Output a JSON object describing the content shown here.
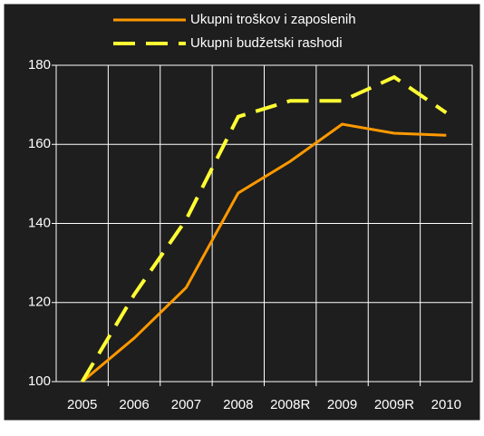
{
  "chart_data": {
    "type": "line",
    "categories": [
      "2005",
      "2006",
      "2007",
      "2008",
      "2008R",
      "2009",
      "2009R",
      "2010"
    ],
    "series": [
      {
        "name": "Ukupni troškov i zaposlenih",
        "color": "#ff9900",
        "dash": false,
        "values": [
          100,
          111,
          123.8,
          147.7,
          155.7,
          165.1,
          162.8,
          162.3
        ]
      },
      {
        "name": "Ukupni budžetski rashodi",
        "color": "#ffff33",
        "dash": true,
        "values": [
          100,
          122,
          141,
          167,
          171,
          171,
          177,
          168
        ]
      }
    ],
    "ylim": [
      100,
      180
    ],
    "yticks": [
      100,
      120,
      140,
      160,
      180
    ],
    "grid": true
  }
}
